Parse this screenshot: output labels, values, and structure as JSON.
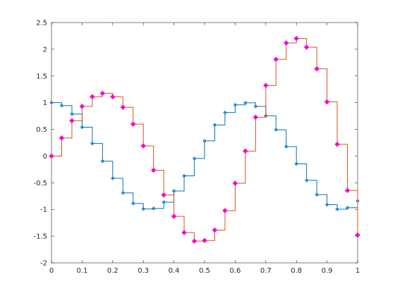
{
  "chart_data": {
    "type": "stairs",
    "x": [
      0,
      0.0333,
      0.0667,
      0.1,
      0.1333,
      0.1667,
      0.2,
      0.2333,
      0.2667,
      0.3,
      0.3333,
      0.3667,
      0.4,
      0.4333,
      0.4667,
      0.5,
      0.5333,
      0.5667,
      0.6,
      0.6333,
      0.6667,
      0.7,
      0.7333,
      0.7667,
      0.8,
      0.8333,
      0.8667,
      0.9,
      0.9333,
      0.9667,
      1
    ],
    "series": [
      {
        "color": "#0072bd",
        "marker_color": "#0072bd",
        "marker_fill": "none",
        "values": [
          1,
          0.945,
          0.786,
          0.54,
          0.235,
          -0.096,
          -0.416,
          -0.691,
          -0.889,
          -0.99,
          -0.981,
          -0.863,
          -0.654,
          -0.37,
          -0.046,
          0.284,
          0.583,
          0.815,
          0.96,
          0.998,
          0.929,
          0.754,
          0.493,
          0.177,
          -0.146,
          -0.455,
          -0.723,
          -0.911,
          -0.995,
          -0.967,
          -0.839
        ]
      },
      {
        "color": "#d95319",
        "marker_color": "#ff00cc",
        "marker_fill": "#ff00cc",
        "values": [
          0,
          0.338,
          0.661,
          0.93,
          1.111,
          1.175,
          1.11,
          0.913,
          0.598,
          0.191,
          -0.265,
          -0.729,
          -1.129,
          -1.433,
          -1.593,
          -1.581,
          -1.386,
          -1.022,
          -0.509,
          0.094,
          0.727,
          1.323,
          1.811,
          2.118,
          2.202,
          2.038,
          1.634,
          1.014,
          0.221,
          -0.644,
          -1.479
        ]
      }
    ],
    "xlim": [
      0,
      1
    ],
    "xticks": [
      0,
      0.1,
      0.2,
      0.3,
      0.4,
      0.5,
      0.6,
      0.7,
      0.8,
      0.9,
      1
    ],
    "ylim": [
      -2,
      2.5
    ],
    "yticks": [
      -2,
      -1.5,
      -1,
      -0.5,
      0,
      0.5,
      1,
      1.5,
      2,
      2.5
    ]
  }
}
